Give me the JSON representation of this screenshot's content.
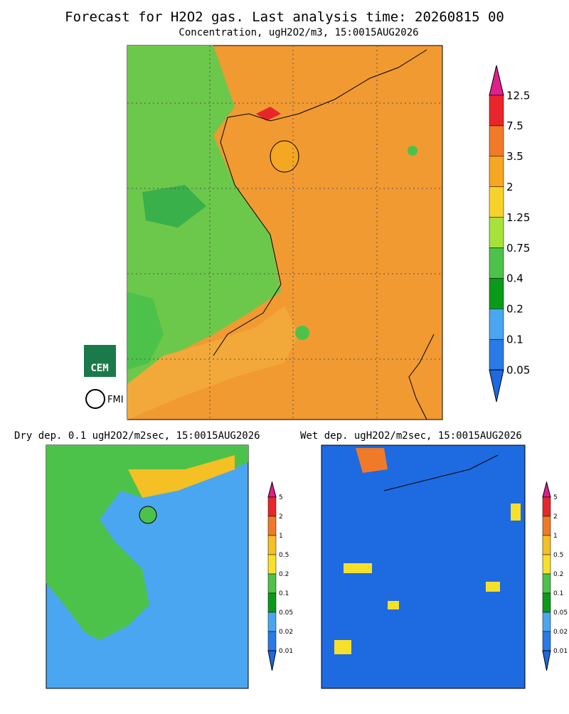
{
  "header": {
    "title": "Forecast for H2O2 gas. Last analysis time: 20260815 00",
    "subtitle": "Concentration, ugH2O2/m3, 15:0015AUG2026"
  },
  "main": {
    "colorbar": {
      "labels": [
        "12.5",
        "7.5",
        "3.5",
        "2",
        "1.25",
        "0.75",
        "0.4",
        "0.2",
        "0.1",
        "0.05"
      ],
      "colors": [
        "#e01f8c",
        "#e8262a",
        "#f07a28",
        "#f5a623",
        "#f7d22a",
        "#a6e23a",
        "#4cc24a",
        "#0a9a1a",
        "#4aa6f0",
        "#2a7ae8",
        "#1e6ae0"
      ]
    }
  },
  "logos": {
    "cem": "CEM",
    "fmi": "FMI"
  },
  "dry": {
    "title": "Dry dep. 0.1 ugH2O2/m2sec, 15:0015AUG2026",
    "colorbar": {
      "labels": [
        "5",
        "2",
        "1",
        "0.5",
        "0.2",
        "0.1",
        "0.05",
        "0.02",
        "0.01"
      ],
      "colors": [
        "#e01f8c",
        "#e8262a",
        "#f07a28",
        "#f5c023",
        "#f7e02a",
        "#4cc24a",
        "#0a9a1a",
        "#4aa6f0",
        "#2a7ae8",
        "#1e6ae0"
      ]
    }
  },
  "wet": {
    "title": "Wet dep. ugH2O2/m2sec, 15:0015AUG2026",
    "colorbar": {
      "labels": [
        "5",
        "2",
        "1",
        "0.5",
        "0.2",
        "0.1",
        "0.05",
        "0.02",
        "0.01"
      ],
      "colors": [
        "#e01f8c",
        "#e8262a",
        "#f07a28",
        "#f5c023",
        "#f7e02a",
        "#4cc24a",
        "#0a9a1a",
        "#4aa6f0",
        "#2a7ae8",
        "#1e6ae0"
      ]
    }
  }
}
